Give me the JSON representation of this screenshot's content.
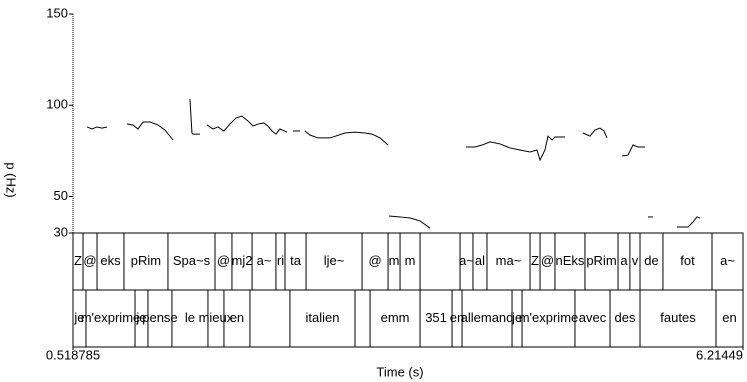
{
  "chart_data": {
    "type": "pitch-track",
    "y_label": "p (Hz)",
    "x_label": "Time (s)",
    "xlim": [
      0.518785,
      6.21449
    ],
    "xticks": [
      0.518785,
      6.21449
    ],
    "ylim": [
      30,
      150
    ],
    "yticks": [
      30,
      50,
      100,
      150
    ],
    "series": [
      {
        "name": "pitch",
        "color": "#000000",
        "x": [
          0.638,
          0.68,
          0.723,
          0.765,
          0.808,
          null,
          0.978,
          1.029,
          1.071,
          1.114,
          1.173,
          1.241,
          1.301,
          1.369,
          null,
          1.513,
          1.53,
          1.539,
          1.598,
          null,
          1.658,
          1.709,
          1.751,
          1.802,
          1.853,
          1.904,
          1.955,
          2.006,
          2.049,
          2.091,
          2.142,
          2.176,
          2.21,
          2.244,
          2.278,
          2.338,
          null,
          2.389,
          2.448,
          null,
          2.491,
          2.533,
          2.601,
          2.704,
          2.831,
          2.916,
          3.001,
          3.061,
          3.129,
          3.197,
          null,
          3.205,
          3.299,
          3.384,
          3.469,
          3.554,
          null,
          3.86,
          3.936,
          3.996,
          4.064,
          4.149,
          4.234,
          4.319,
          4.404,
          4.463,
          4.489,
          4.531,
          4.557,
          4.591,
          4.616,
          4.659,
          4.701,
          null,
          4.854,
          4.914,
          4.956,
          4.999,
          5.033,
          5.058,
          null,
          5.186,
          5.237,
          5.279,
          5.322,
          5.381,
          null,
          5.407,
          5.449,
          null,
          5.653,
          5.747,
          5.789,
          5.823,
          5.849
        ],
        "values": [
          88.1,
          87.0,
          88.1,
          87.5,
          88.1,
          null,
          89.7,
          89.2,
          87.0,
          90.8,
          90.8,
          89.2,
          86.4,
          81.0,
          null,
          103.4,
          84.8,
          84.2,
          84.2,
          null,
          89.2,
          87.0,
          88.1,
          85.9,
          89.7,
          93.0,
          94.1,
          91.4,
          88.6,
          89.7,
          90.3,
          88.6,
          85.9,
          84.2,
          87.0,
          85.3,
          null,
          85.9,
          85.9,
          null,
          85.9,
          83.7,
          82.1,
          82.1,
          84.8,
          85.3,
          84.8,
          84.2,
          82.1,
          78.2,
          null,
          39.3,
          38.8,
          38.2,
          36.6,
          32.7,
          null,
          77.1,
          77.1,
          78.2,
          79.9,
          78.8,
          76.6,
          75.5,
          74.4,
          75.5,
          70.0,
          75.5,
          83.1,
          81.0,
          82.6,
          82.6,
          82.6,
          null,
          84.8,
          83.1,
          86.4,
          87.5,
          85.9,
          82.1,
          null,
          72.2,
          72.7,
          78.2,
          77.1,
          77.1,
          null,
          38.8,
          38.8,
          null,
          33.3,
          33.3,
          36.0,
          38.8,
          38.2
        ]
      }
    ],
    "tiers": [
      {
        "boundaries": [
          0.518785,
          0.604,
          0.723,
          0.952,
          1.326,
          1.726,
          1.87,
          2.041,
          2.244,
          2.321,
          2.5,
          2.976,
          3.197,
          3.299,
          3.469,
          3.809,
          3.919,
          4.038,
          4.404,
          4.489,
          4.616,
          4.871,
          5.152,
          5.253,
          5.339,
          5.534,
          5.951,
          6.21449
        ],
        "labels": [
          "Z",
          "@",
          "eks",
          "pRim",
          "Spa~s",
          "@",
          "mj2",
          "a~",
          "ri",
          "ta",
          "lje~",
          "@",
          "m",
          "m",
          null,
          "a~",
          "al",
          "ma~",
          "Z",
          "@",
          "nEks",
          "pRim",
          "a",
          "v",
          "de",
          "fot",
          "a~"
        ]
      },
      {
        "boundaries": [
          0.518785,
          0.629,
          1.046,
          1.156,
          1.36,
          1.666,
          1.802,
          2.023,
          2.363,
          2.916,
          3.044,
          3.469,
          3.741,
          3.826,
          4.251,
          4.336,
          4.786,
          5.084,
          5.339,
          5.985,
          6.21449
        ],
        "labels": [
          "je",
          "m'exprime",
          "je",
          "pense",
          "le",
          "mieux",
          "en",
          null,
          "italien",
          null,
          "emm",
          "351",
          "en",
          "allemand",
          "je",
          "m'exprime",
          "avec",
          "des",
          "fautes",
          "en"
        ]
      }
    ]
  }
}
